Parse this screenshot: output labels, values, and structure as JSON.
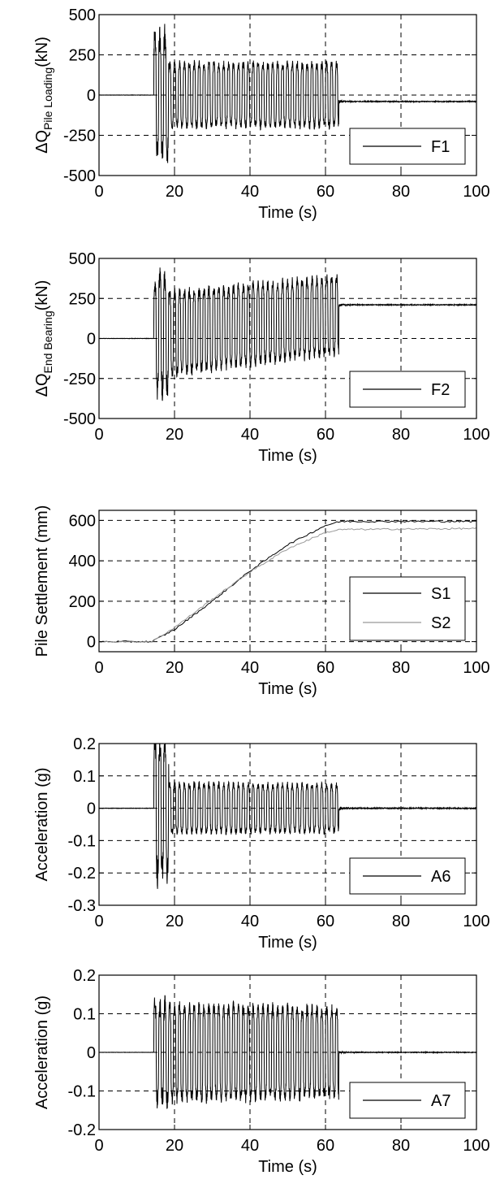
{
  "chart_data": [
    {
      "type": "line",
      "ylabel": "ΔQ",
      "ylabel_sub": "Pile Loading",
      "ylabel_unit": "(kN)",
      "xlabel": "Time (s)",
      "xlim": [
        0,
        100
      ],
      "ylim": [
        -500,
        500
      ],
      "xticks": [
        "0",
        "20",
        "40",
        "60",
        "80",
        "100"
      ],
      "yticks": [
        "500",
        "250",
        "0",
        "-250",
        "-500"
      ],
      "grid": true,
      "legend_position": "lower-right",
      "series": [
        {
          "name": "F1",
          "color": "#000000",
          "signal": {
            "start": 14.5,
            "end": 63.5,
            "amp_start": 190,
            "amp_end": 190,
            "offset_start": 0,
            "offset_end": 0,
            "after": -40,
            "period": 1.3,
            "spike_amp": 450
          }
        }
      ]
    },
    {
      "type": "line",
      "ylabel": "ΔQ",
      "ylabel_sub": "End Bearing",
      "ylabel_unit": "(kN)",
      "xlabel": "Time (s)",
      "xlim": [
        0,
        100
      ],
      "ylim": [
        -500,
        500
      ],
      "xticks": [
        "0",
        "20",
        "40",
        "60",
        "80",
        "100"
      ],
      "yticks": [
        "500",
        "250",
        "0",
        "-250",
        "-500"
      ],
      "grid": true,
      "legend_position": "lower-right",
      "series": [
        {
          "name": "F2",
          "color": "#000000",
          "signal": {
            "start": 14.5,
            "end": 63.5,
            "amp_start": 250,
            "amp_end": 230,
            "offset_start": 20,
            "offset_end": 150,
            "after": 210,
            "period": 1.3,
            "spike_amp": 420
          }
        }
      ]
    },
    {
      "type": "line",
      "ylabel": "Pile Settlement (mm)",
      "xlabel": "Time (s)",
      "xlim": [
        0,
        100
      ],
      "ylim": [
        -50,
        650
      ],
      "xticks": [
        "0",
        "20",
        "40",
        "60",
        "80",
        "100"
      ],
      "yticks": [
        "600",
        "400",
        "200",
        "0"
      ],
      "grid": true,
      "legend_position": "lower-right",
      "series": [
        {
          "name": "S1",
          "color": "#000000",
          "x": [
            0,
            14,
            20,
            30,
            40,
            50,
            60,
            64,
            100
          ],
          "y": [
            0,
            0,
            60,
            200,
            350,
            480,
            575,
            595,
            595
          ]
        },
        {
          "name": "S2",
          "color": "#999999",
          "x": [
            0,
            14,
            20,
            30,
            40,
            50,
            60,
            64,
            100
          ],
          "y": [
            0,
            0,
            70,
            210,
            345,
            460,
            540,
            555,
            560
          ]
        }
      ]
    },
    {
      "type": "line",
      "ylabel": "Acceleration (g)",
      "xlabel": "Time (s)",
      "xlim": [
        0,
        100
      ],
      "ylim": [
        -0.3,
        0.2
      ],
      "xticks": [
        "0",
        "20",
        "40",
        "60",
        "80",
        "100"
      ],
      "yticks": [
        "0.2",
        "0.1",
        "0",
        "-0.1",
        "-0.2",
        "-0.3"
      ],
      "grid": true,
      "legend_position": "lower-right",
      "series": [
        {
          "name": "A6",
          "color": "#000000",
          "signal": {
            "start": 14.5,
            "end": 63.5,
            "amp_start": 0.075,
            "amp_end": 0.07,
            "offset_start": 0,
            "offset_end": 0,
            "after": 0,
            "period": 1.3,
            "spike_amp": 0.25
          }
        }
      ]
    },
    {
      "type": "line",
      "ylabel": "Acceleration (g)",
      "xlabel": "Time (s)",
      "xlim": [
        0,
        100
      ],
      "ylim": [
        -0.2,
        0.2
      ],
      "xticks": [
        "0",
        "20",
        "40",
        "60",
        "80",
        "100"
      ],
      "yticks": [
        "0.2",
        "0.1",
        "0",
        "-0.1",
        "-0.2"
      ],
      "grid": true,
      "legend_position": "lower-right",
      "series": [
        {
          "name": "A7",
          "color": "#000000",
          "signal": {
            "start": 14.5,
            "end": 63.5,
            "amp_start": 0.12,
            "amp_end": 0.11,
            "offset_start": 0,
            "offset_end": 0,
            "after": 0,
            "period": 1.3,
            "spike_amp": 0.15
          }
        }
      ]
    }
  ]
}
